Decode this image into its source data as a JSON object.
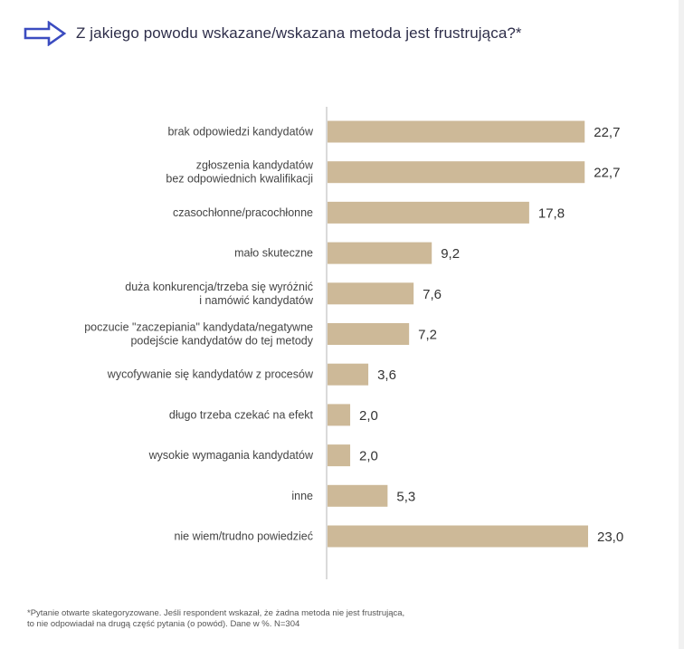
{
  "title": "Z jakiego powodu wskazane/wskazana metoda jest frustrująca?*",
  "footnote": {
    "line1": "*Pytanie otwarte skategoryzowane. Jeśli respondent wskazał, że żadna metoda nie jest frustrująca,",
    "line2": "to nie odpowiadał na drugą część pytania (o powód). Dane w %. N=304"
  },
  "colors": {
    "bar": "#cdb998",
    "axis": "#b5b5b5",
    "label": "#444444",
    "arrow": "#3b4cc0",
    "title": "#2e2e4a"
  },
  "chart_data": {
    "type": "bar",
    "orientation": "horizontal",
    "categories": [
      [
        "brak odpowiedzi kandydatów"
      ],
      [
        "zgłoszenia kandydatów",
        "bez odpowiednich kwalifikacji"
      ],
      [
        "czasochłonne/pracochłonne"
      ],
      [
        "mało skuteczne"
      ],
      [
        "duża konkurencja/trzeba się wyróżnić",
        "i namówić kandydatów"
      ],
      [
        "poczucie \"zaczepiania\" kandydata/negatywne",
        "podejście kandydatów do tej metody"
      ],
      [
        "wycofywanie się kandydatów z procesów"
      ],
      [
        "długo trzeba czekać na efekt"
      ],
      [
        "wysokie wymagania kandydatów"
      ],
      [
        "inne"
      ],
      [
        "nie wiem/trudno powiedzieć"
      ]
    ],
    "values": [
      22.7,
      22.7,
      17.8,
      9.2,
      7.6,
      7.2,
      3.6,
      2.0,
      2.0,
      5.3,
      23.0
    ],
    "value_labels": [
      "22,7",
      "22,7",
      "17,8",
      "9,2",
      "7,6",
      "7,2",
      "3,6",
      "2,0",
      "2,0",
      "5,3",
      "23,0"
    ],
    "xlim": [
      0,
      23.0
    ],
    "grid": false,
    "legend": "none"
  }
}
